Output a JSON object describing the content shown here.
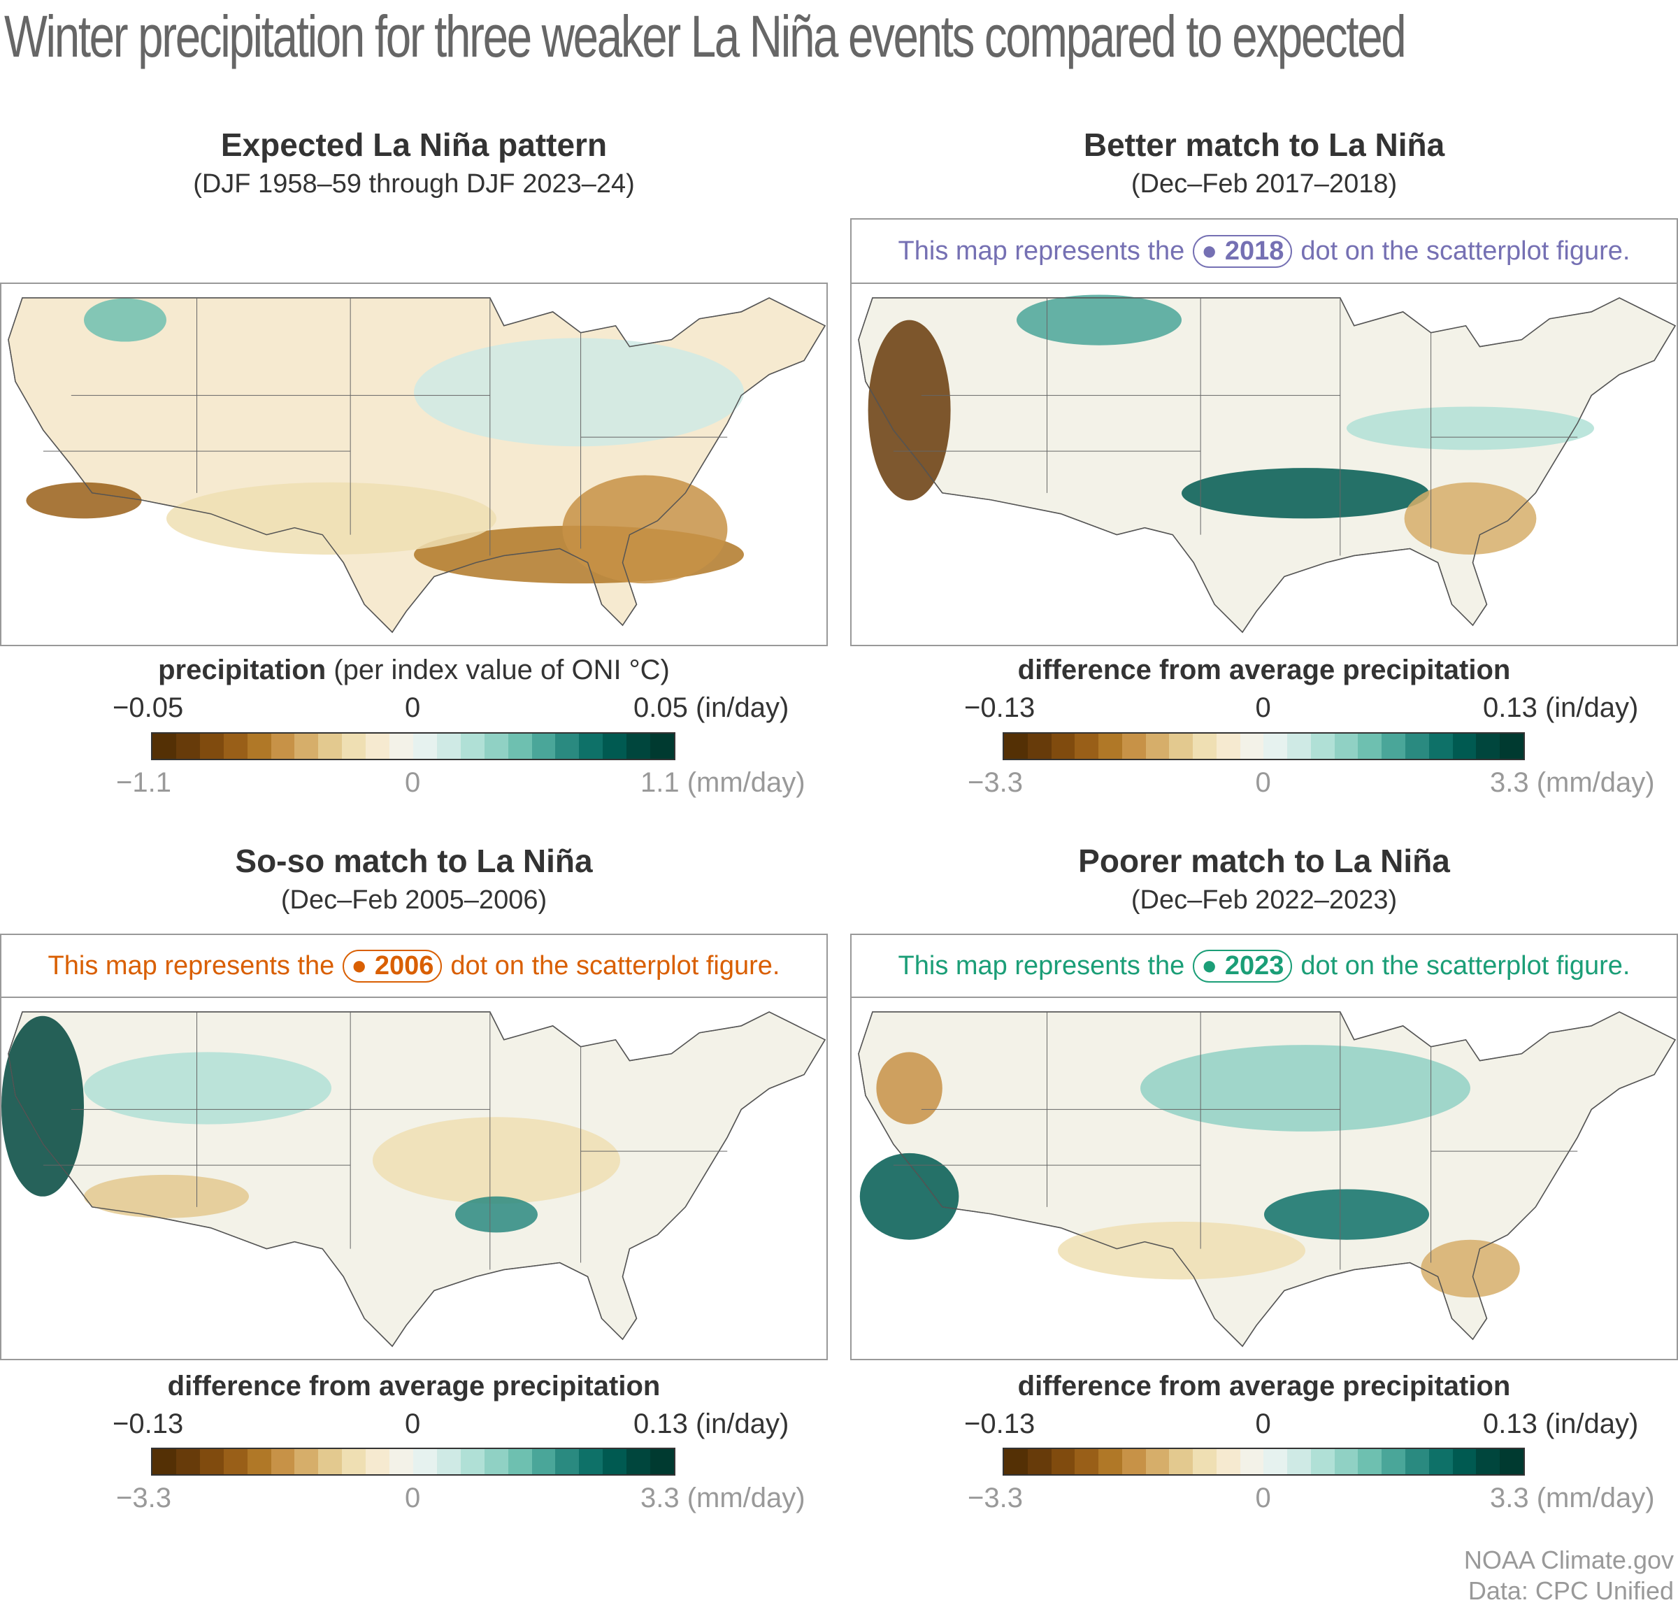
{
  "title": "Winter precipitation for three weaker La Niña events compared to expected",
  "colorscale": [
    "#543005",
    "#673b0a",
    "#804b0e",
    "#995f18",
    "#b07827",
    "#c79247",
    "#d6ae6a",
    "#e3c98f",
    "#efdfb3",
    "#f6ead0",
    "#f3f2e8",
    "#e6f2ef",
    "#cfeae5",
    "#b0e0d6",
    "#90d1c4",
    "#6ec0b0",
    "#4aa699",
    "#2a8a80",
    "#0e7168",
    "#005a51",
    "#00463d",
    "#003a30"
  ],
  "panels": [
    {
      "title": "Expected La Niña pattern",
      "subtitle": "(DJF 1958–59 through DJF 2023–24)",
      "legend_bold": "precipitation",
      "legend_rest": " (per index value of ONI °C)",
      "in_min": "−0.05",
      "in_mid": "0",
      "in_max": "0.05 (in/day)",
      "mm_min": "−1.1",
      "mm_mid": "0",
      "mm_max": "1.1 (mm/day)"
    },
    {
      "title": "Better match to La Niña",
      "subtitle": "(Dec–Feb 2017–2018)",
      "callout_pre": "This map represents the",
      "callout_year": "2018",
      "callout_post": "dot on the scatterplot figure.",
      "color": "#7570b3",
      "legend_bold": "difference from average precipitation",
      "legend_rest": "",
      "in_min": "−0.13",
      "in_mid": "0",
      "in_max": "0.13 (in/day)",
      "mm_min": "−3.3",
      "mm_mid": "0",
      "mm_max": "3.3 (mm/day)"
    },
    {
      "title": "So-so match to La Niña",
      "subtitle": "(Dec–Feb 2005–2006)",
      "callout_pre": "This map represents the",
      "callout_year": "2006",
      "callout_post": "dot on the scatterplot figure.",
      "color": "#d95f02",
      "legend_bold": "difference from average precipitation",
      "legend_rest": "",
      "in_min": "−0.13",
      "in_mid": "0",
      "in_max": "0.13 (in/day)",
      "mm_min": "−3.3",
      "mm_mid": "0",
      "mm_max": "3.3 (mm/day)"
    },
    {
      "title": "Poorer match to La Niña",
      "subtitle": "(Dec–Feb 2022–2023)",
      "callout_pre": "This map represents the",
      "callout_year": "2023",
      "callout_post": "dot on the scatterplot figure.",
      "color": "#1b9e77",
      "legend_bold": "difference from average precipitation",
      "legend_rest": "",
      "in_min": "−0.13",
      "in_mid": "0",
      "in_max": "0.13 (in/day)",
      "mm_min": "−3.3",
      "mm_mid": "0",
      "mm_max": "3.3 (mm/day)"
    }
  ],
  "footer": {
    "line1": "NOAA Climate.gov",
    "line2": "Data: CPC Unified"
  }
}
